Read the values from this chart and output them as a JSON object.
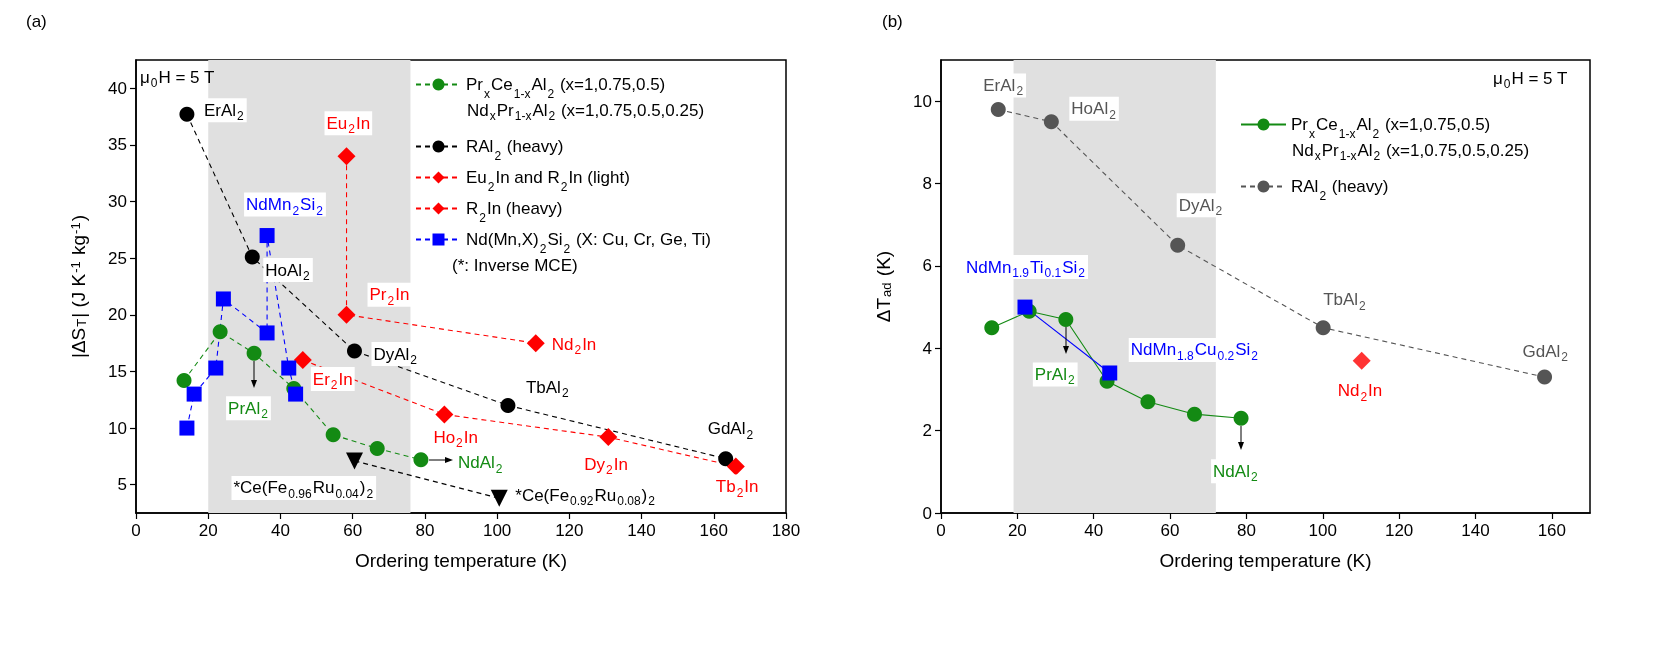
{
  "chart_data": [
    {
      "type": "line",
      "title": "(a)",
      "xlabel": "Ordering temperature (K)",
      "ylabel": "|ΔS$_{T}$| (J K$^{-1}$ kg$^{-1}$)",
      "xlim": [
        0,
        180
      ],
      "xticks": [
        0,
        20,
        40,
        60,
        80,
        100,
        120,
        140,
        160,
        180
      ],
      "ylim": [
        2.5,
        42.5
      ],
      "yticks": [
        5,
        10,
        15,
        20,
        25,
        30,
        35,
        40
      ],
      "grid": false,
      "legend": "top right",
      "bands": [
        {
          "axis": "x",
          "from": 20,
          "to": 76,
          "color": "#e0e0e0"
        }
      ],
      "series": [
        {
          "name": "Pr$_{x}$Ce$_{1-x}$Al$_{2}$ (x=1,0.75,0.5)",
          "color": "#138a13",
          "line_style": "dashed",
          "marker": "circle",
          "x": [
            13.3,
            23.3,
            32.7,
            43.7,
            54.6,
            66.8,
            78.9
          ],
          "values": [
            14.2,
            18.5,
            16.6,
            13.5,
            9.4,
            8.2,
            7.2
          ]
        },
        {
          "name": "RAl$_{2}$ (heavy)",
          "color": "#000000",
          "line_style": "dashed",
          "marker": "circle",
          "x": [
            14.1,
            32.2,
            60.5,
            103.0,
            163.3
          ],
          "values": [
            37.7,
            25.1,
            16.8,
            12.0,
            7.3
          ]
        },
        {
          "name": "Eu$_{2}$In and R$_{2}$In (light)",
          "color": "#ff0000",
          "line_style": "dashed",
          "marker": "diamond",
          "x": [
            58.3,
            58.3,
            110.7
          ],
          "values": [
            34.0,
            20.0,
            17.5
          ]
        },
        {
          "name": "R$_{2}$In (heavy)",
          "color": "#ff0000",
          "line_style": "dashed",
          "marker": "diamond",
          "x": [
            46.2,
            85.4,
            130.8,
            166.1
          ],
          "values": [
            16.0,
            11.2,
            9.2,
            6.6
          ]
        },
        {
          "name": "Nd(Mn,X)$_{2}$Si$_{2}$ (X: Cu, Cr, Ge, Ti)",
          "color": "#0000ff",
          "line_style": "dashed",
          "marker": "square",
          "x": [
            14.1,
            16.1,
            22.1,
            24.2,
            36.3,
            36.3,
            42.3,
            44.2
          ],
          "values": [
            10.0,
            13.0,
            15.3,
            21.4,
            18.4,
            27.0,
            15.3,
            13.0
          ]
        },
        {
          "color": "#000000",
          "line_style": "dashed",
          "marker": "triangle-down",
          "x": [
            60.5,
            100.6
          ],
          "values": [
            7.1,
            3.8
          ]
        }
      ],
      "annotations": [
        "μ$_{0}$H = 5 T",
        "Nd$_{x}$Pr$_{1-x}$Al$_{2}$ (x=1,0.75,0.5,0.25)",
        "(*: Inverse MCE)",
        {
          "text": "ErAl$_{2}$",
          "x": 14.1,
          "y": 37.7
        },
        {
          "text": "HoAl$_{2}$",
          "x": 32.2,
          "y": 25.1
        },
        {
          "text": "DyAl$_{2}$",
          "x": 60.5,
          "y": 16.8
        },
        {
          "text": "TbAl$_{2}$",
          "x": 103.0,
          "y": 12.0
        },
        {
          "text": "GdAl$_{2}$",
          "x": 163.3,
          "y": 7.3
        },
        {
          "text": "Eu$_{2}$In",
          "x": 58.3,
          "y": 34.0
        },
        {
          "text": "Pr$_{2}$In",
          "x": 58.3,
          "y": 20.0
        },
        {
          "text": "Nd$_{2}$In",
          "x": 110.7,
          "y": 17.5
        },
        {
          "text": "Er$_{2}$In",
          "x": 46.2,
          "y": 16.0
        },
        {
          "text": "Ho$_{2}$In",
          "x": 85.4,
          "y": 11.2
        },
        {
          "text": "Dy$_{2}$In",
          "x": 130.8,
          "y": 9.2
        },
        {
          "text": "Tb$_{2}$In",
          "x": 166.1,
          "y": 6.6
        },
        {
          "text": "NdMn$_{2}$Si$_{2}$",
          "x": 36.3,
          "y": 27.0
        },
        {
          "text": "PrAl$_{2}$",
          "x": 32.7,
          "y": 16.6
        },
        {
          "text": "NdAl$_{2}$",
          "x": 78.9,
          "y": 7.2
        },
        {
          "text": "*Ce(Fe$_{0.96}$Ru$_{0.04}$)$_{2}$",
          "x": 60.5,
          "y": 7.1
        },
        {
          "text": "*Ce(Fe$_{0.92}$Ru$_{0.08}$)$_{2}$",
          "x": 100.6,
          "y": 3.8
        }
      ]
    },
    {
      "type": "line",
      "title": "(b)",
      "xlabel": "Ordering temperature (K)",
      "ylabel": "ΔT$_{ad}$ (K)",
      "xlim": [
        0,
        170
      ],
      "xticks": [
        0,
        20,
        40,
        60,
        80,
        100,
        120,
        140,
        160
      ],
      "ylim": [
        0,
        11
      ],
      "yticks": [
        0,
        2,
        4,
        6,
        8,
        10
      ],
      "grid": false,
      "legend": "top right",
      "bands": [
        {
          "axis": "x",
          "from": 19,
          "to": 72,
          "color": "#e0e0e0"
        }
      ],
      "series": [
        {
          "name": "Pr$_{x}$Ce$_{1-x}$Al$_{2}$ (x=1,0.75,0.5)",
          "color": "#138a13",
          "line_style": "solid",
          "marker": "circle",
          "x": [
            13.3,
            23.1,
            32.7,
            43.5,
            54.2,
            66.4,
            78.6
          ],
          "values": [
            4.5,
            4.9,
            4.7,
            3.2,
            2.7,
            2.4,
            2.3
          ]
        },
        {
          "name": "RAl$_{2}$ (heavy)",
          "color": "#555555",
          "line_style": "dashed",
          "marker": "circle",
          "x": [
            15.0,
            28.9,
            62.0,
            100.1,
            158.1
          ],
          "values": [
            9.8,
            9.5,
            6.5,
            4.5,
            3.3
          ]
        },
        {
          "color": "#0000ff",
          "line_style": "solid",
          "marker": "square",
          "x": [
            22.0,
            44.2
          ],
          "values": [
            5.0,
            3.4
          ]
        },
        {
          "type": "scatter",
          "color": "#ff0000",
          "marker": "diamond",
          "x": [
            110.2
          ],
          "values": [
            3.7
          ]
        }
      ],
      "annotations": [
        "μ$_{0}$H = 5 T",
        "Nd$_{x}$Pr$_{1-x}$Al$_{2}$ (x=1,0.75,0.5,0.25)",
        {
          "text": "ErAl$_{2}$",
          "x": 15.0,
          "y": 9.8
        },
        {
          "text": "HoAl$_{2}$",
          "x": 28.9,
          "y": 9.5
        },
        {
          "text": "DyAl$_{2}$",
          "x": 62.0,
          "y": 6.5
        },
        {
          "text": "TbAl$_{2}$",
          "x": 100.1,
          "y": 4.5
        },
        {
          "text": "GdAl$_{2}$",
          "x": 158.1,
          "y": 3.3
        },
        {
          "text": "Nd$_{2}$In",
          "x": 110.2,
          "y": 3.7
        },
        {
          "text": "NdMn$_{1.9}$Ti$_{0.1}$Si$_{2}$",
          "x": 22.0,
          "y": 5.0
        },
        {
          "text": "NdMn$_{1.8}$Cu$_{0.2}$Si$_{2}$",
          "x": 44.2,
          "y": 3.4
        },
        {
          "text": "PrAl$_{2}$",
          "x": 32.7,
          "y": 4.7
        },
        {
          "text": "NdAl$_{2}$",
          "x": 78.6,
          "y": 2.3
        }
      ]
    }
  ]
}
